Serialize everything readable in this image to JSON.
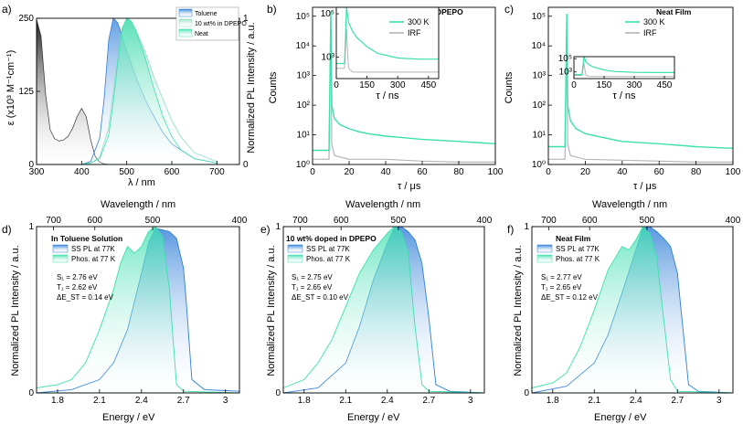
{
  "chart_data": [
    {
      "panel": "a)",
      "type": "area",
      "xlabel": "λ / nm",
      "ylabel_left": "ε (x10³ M⁻¹cm⁻¹)",
      "ylabel_right": "Normalized PL Intensity / a.u.",
      "xlim": [
        300,
        750
      ],
      "ylim_left": [
        0,
        250
      ],
      "ylim_right": [
        0,
        1
      ],
      "xticks": [
        "300",
        "400",
        "500",
        "600",
        "700"
      ],
      "yticks_left": [
        "0",
        "125",
        "250"
      ],
      "yticks_right": [
        "0",
        "1"
      ],
      "absorption": {
        "x": [
          300,
          310,
          320,
          330,
          340,
          350,
          360,
          370,
          380,
          390,
          400,
          410,
          420,
          430,
          440,
          450,
          460
        ],
        "y": [
          248,
          220,
          120,
          60,
          44,
          40,
          42,
          48,
          62,
          82,
          96,
          82,
          42,
          14,
          4,
          1,
          0
        ]
      },
      "legend": [
        "Toluene",
        "10 wt% in DPEPO",
        "Neat"
      ],
      "series": [
        {
          "name": "Toluene",
          "color": "#2f7fd8",
          "x": [
            400,
            420,
            440,
            450,
            460,
            470,
            480,
            490,
            500,
            520,
            540,
            560,
            580,
            600,
            650,
            700
          ],
          "y": [
            0,
            0.02,
            0.18,
            0.45,
            0.85,
            1.0,
            0.97,
            0.88,
            0.78,
            0.6,
            0.45,
            0.33,
            0.22,
            0.14,
            0.04,
            0.01
          ]
        },
        {
          "name": "10 wt% in DPEPO",
          "color": "#8fdcc6",
          "x": [
            400,
            420,
            440,
            460,
            480,
            490,
            500,
            510,
            520,
            540,
            560,
            580,
            600,
            620,
            650,
            700
          ],
          "y": [
            0,
            0.01,
            0.05,
            0.25,
            0.72,
            0.92,
            1.0,
            0.98,
            0.92,
            0.78,
            0.6,
            0.45,
            0.3,
            0.19,
            0.08,
            0.02
          ]
        },
        {
          "name": "Neat",
          "color": "#3ddfae",
          "x": [
            400,
            420,
            440,
            460,
            470,
            480,
            490,
            500,
            510,
            520,
            540,
            560,
            580,
            600,
            620,
            650,
            700
          ],
          "y": [
            0,
            0.01,
            0.04,
            0.2,
            0.42,
            0.7,
            0.93,
            1.0,
            0.98,
            0.92,
            0.74,
            0.52,
            0.33,
            0.19,
            0.1,
            0.04,
            0.01
          ]
        }
      ]
    },
    {
      "panel": "b)",
      "type": "line",
      "title": "10 wt% doped in DPEPO",
      "xlabel": "τ / μs",
      "ylabel": "Counts",
      "xlim": [
        0,
        100
      ],
      "ylim": [
        1,
        200000
      ],
      "yscale": "log",
      "xticks": [
        "0",
        "20",
        "40",
        "60",
        "80",
        "100"
      ],
      "yticks": [
        "10⁰",
        "10¹",
        "10²",
        "10³",
        "10⁴",
        "10⁵"
      ],
      "legend": [
        "300 K",
        "IRF"
      ],
      "series": [
        {
          "name": "300 K",
          "color": "#3ddfae",
          "x": [
            0,
            9,
            10,
            10.5,
            12,
            15,
            20,
            25,
            30,
            40,
            50,
            60,
            70,
            80,
            90,
            100
          ],
          "y": [
            3,
            3,
            150000,
            100,
            35,
            22,
            16,
            13,
            11,
            9,
            8,
            7,
            6.5,
            6,
            5.5,
            5
          ]
        },
        {
          "name": "IRF",
          "color": "#b5b5b5",
          "x": [
            0,
            9,
            10,
            10.5,
            12,
            20,
            40,
            60,
            80,
            100
          ],
          "y": [
            1.5,
            1.5,
            60000,
            5,
            2,
            1.5,
            1.5,
            1.3,
            1.2,
            1.2
          ]
        }
      ],
      "inset": {
        "xlabel": "τ / ns",
        "xlim": [
          0,
          500
        ],
        "ylim": [
          100,
          200000
        ],
        "yscale": "log",
        "xticks": [
          "0",
          "150",
          "300",
          "450"
        ],
        "yticks": [
          "10³",
          "10⁵"
        ],
        "series": [
          {
            "name": "300 K",
            "x": [
              0,
              40,
              50,
              60,
              80,
              100,
              150,
              200,
              300,
              400,
              500
            ],
            "y": [
              500,
              500,
              200000,
              40000,
              15000,
              8000,
              3000,
              1500,
              900,
              800,
              800
            ]
          },
          {
            "name": "IRF",
            "x": [
              0,
              40,
              50,
              55,
              60,
              80,
              500
            ],
            "y": [
              300,
              300,
              20000,
              2000,
              300,
              200,
              200
            ]
          }
        ]
      }
    },
    {
      "panel": "c)",
      "type": "line",
      "title": "Neat Film",
      "xlabel": "τ / μs",
      "ylabel": "Counts",
      "xlim": [
        0,
        100
      ],
      "ylim": [
        1,
        200000
      ],
      "yscale": "log",
      "xticks": [
        "0",
        "20",
        "40",
        "60",
        "80",
        "100"
      ],
      "yticks": [
        "10⁰",
        "10¹",
        "10²",
        "10³",
        "10⁴",
        "10⁵"
      ],
      "legend": [
        "300 K",
        "IRF"
      ],
      "series": [
        {
          "name": "300 K",
          "color": "#3ddfae",
          "x": [
            0,
            9,
            10,
            10.5,
            12,
            15,
            20,
            30,
            40,
            60,
            80,
            100
          ],
          "y": [
            4,
            4,
            120000,
            100,
            30,
            16,
            11,
            8,
            6,
            5,
            4,
            3.5
          ]
        },
        {
          "name": "IRF",
          "color": "#b5b5b5",
          "x": [
            0,
            9,
            10,
            10.5,
            12,
            20,
            40,
            60,
            80,
            100
          ],
          "y": [
            1.5,
            1.5,
            50000,
            5,
            2,
            1.5,
            1.4,
            1.3,
            1.2,
            1.2
          ]
        }
      ],
      "inset": {
        "xlabel": "τ / ns",
        "xlim": [
          0,
          500
        ],
        "ylim": [
          100,
          200000
        ],
        "yscale": "log",
        "xticks": [
          "0",
          "150",
          "300",
          "450"
        ],
        "yticks": [
          "10³",
          "10⁵"
        ],
        "series": [
          {
            "name": "300 K",
            "x": [
              0,
              40,
              50,
              60,
              80,
              100,
              150,
              200,
              300,
              400,
              500
            ],
            "y": [
              400,
              400,
              200000,
              30000,
              10000,
              5000,
              2000,
              1200,
              900,
              800,
              800
            ]
          },
          {
            "name": "IRF",
            "x": [
              0,
              40,
              50,
              55,
              60,
              80,
              500
            ],
            "y": [
              300,
              300,
              20000,
              2000,
              300,
              200,
              200
            ]
          }
        ]
      }
    },
    {
      "panel": "d)",
      "type": "area",
      "title": "In Toluene Solution",
      "xlabel": "Energy / eV",
      "ylabel": "Normalized PL Intensity / a.u.",
      "top_xlabel": "Wavelength / nm",
      "xlim": [
        1.65,
        3.1
      ],
      "ylim": [
        0,
        1
      ],
      "xticks": [
        "1.8",
        "2.1",
        "2.4",
        "2.7",
        "3"
      ],
      "top_xticks": [
        "700",
        "600",
        "500",
        "400"
      ],
      "yticks": [
        "0",
        "1"
      ],
      "legend": [
        "SS PL at 77K",
        "Phos. at 77 K"
      ],
      "annotations": [
        "S₁ = 2.76 eV",
        "T₁ = 2.62 eV",
        "ΔE_ST = 0.14 eV"
      ],
      "series": [
        {
          "name": "SS PL at 77K",
          "color": "#2f7fd8",
          "x": [
            1.65,
            1.9,
            2.1,
            2.2,
            2.3,
            2.4,
            2.45,
            2.5,
            2.55,
            2.6,
            2.65,
            2.7,
            2.72,
            2.76,
            2.85,
            3.1
          ],
          "y": [
            0,
            0.02,
            0.08,
            0.18,
            0.38,
            0.72,
            0.9,
            0.99,
            0.98,
            0.97,
            0.93,
            0.75,
            0.55,
            0.08,
            0.02,
            0.01
          ]
        },
        {
          "name": "Phos. at 77 K",
          "color": "#3ddfae",
          "x": [
            1.65,
            1.8,
            1.9,
            2.0,
            2.1,
            2.2,
            2.25,
            2.3,
            2.35,
            2.4,
            2.45,
            2.5,
            2.55,
            2.6,
            2.65,
            2.7,
            3.1
          ],
          "y": [
            0.03,
            0.05,
            0.08,
            0.18,
            0.38,
            0.62,
            0.78,
            0.88,
            0.84,
            0.88,
            0.97,
            1.0,
            0.94,
            0.62,
            0.05,
            0.01,
            0
          ]
        }
      ]
    },
    {
      "panel": "e)",
      "type": "area",
      "title": "10 wt% doped in DPEPO",
      "xlabel": "Energy / eV",
      "ylabel": "Normalized PL Intensity / a.u.",
      "top_xlabel": "Wavelength / nm",
      "xlim": [
        1.65,
        3.1
      ],
      "ylim": [
        0,
        1
      ],
      "xticks": [
        "1.8",
        "2.1",
        "2.4",
        "2.7",
        "3"
      ],
      "top_xticks": [
        "700",
        "600",
        "500",
        "400"
      ],
      "yticks": [
        "0",
        "1"
      ],
      "legend": [
        "SS PL at 77K",
        "Phos. at 77 K"
      ],
      "annotations": [
        "S₁ = 2.75 eV",
        "T₁ = 2.65 eV",
        "ΔE_ST = 0.10 eV"
      ],
      "series": [
        {
          "name": "SS PL at 77K",
          "color": "#2f7fd8",
          "x": [
            1.65,
            1.9,
            2.1,
            2.2,
            2.3,
            2.4,
            2.45,
            2.5,
            2.55,
            2.6,
            2.65,
            2.7,
            2.75,
            2.85,
            3.1
          ],
          "y": [
            0,
            0.03,
            0.18,
            0.4,
            0.68,
            0.9,
            0.99,
            1.0,
            0.97,
            0.92,
            0.78,
            0.45,
            0.05,
            0.01,
            0
          ]
        },
        {
          "name": "Phos. at 77 K",
          "color": "#3ddfae",
          "x": [
            1.65,
            1.8,
            1.9,
            2.0,
            2.1,
            2.2,
            2.3,
            2.4,
            2.45,
            2.5,
            2.55,
            2.6,
            2.65,
            2.7,
            3.1
          ],
          "y": [
            0.03,
            0.08,
            0.18,
            0.32,
            0.52,
            0.72,
            0.86,
            0.96,
            1.0,
            0.97,
            0.85,
            0.4,
            0.05,
            0.01,
            0
          ]
        }
      ]
    },
    {
      "panel": "f)",
      "type": "area",
      "title": "Neat Film",
      "xlabel": "Energy / eV",
      "ylabel": "Normalized PL Intensity / a.u.",
      "top_xlabel": "Wavelength / nm",
      "xlim": [
        1.65,
        3.1
      ],
      "ylim": [
        0,
        1
      ],
      "xticks": [
        "1.8",
        "2.1",
        "2.4",
        "2.7",
        "3"
      ],
      "top_xticks": [
        "700",
        "600",
        "500",
        "400"
      ],
      "yticks": [
        "0",
        "1"
      ],
      "legend": [
        "SS PL at 77K",
        "Phos. at 77 K"
      ],
      "annotations": [
        "S₁ = 2.77 eV",
        "T₁ = 2.65 eV",
        "ΔE_ST = 0.12 eV"
      ],
      "series": [
        {
          "name": "SS PL at 77K",
          "color": "#2f7fd8",
          "x": [
            1.65,
            1.9,
            2.1,
            2.2,
            2.3,
            2.4,
            2.45,
            2.5,
            2.55,
            2.6,
            2.65,
            2.7,
            2.72,
            2.78,
            2.85,
            3.1
          ],
          "y": [
            0,
            0.04,
            0.18,
            0.35,
            0.6,
            0.86,
            0.99,
            1.0,
            0.97,
            0.93,
            0.88,
            0.72,
            0.55,
            0.05,
            0.01,
            0
          ]
        },
        {
          "name": "Phos. at 77 K",
          "color": "#3ddfae",
          "x": [
            1.65,
            1.8,
            1.9,
            2.0,
            2.1,
            2.2,
            2.3,
            2.35,
            2.4,
            2.45,
            2.5,
            2.55,
            2.6,
            2.65,
            2.7,
            3.1
          ],
          "y": [
            0.03,
            0.06,
            0.12,
            0.28,
            0.5,
            0.74,
            0.88,
            0.86,
            0.92,
            1.0,
            0.96,
            0.82,
            0.45,
            0.08,
            0.01,
            0
          ]
        }
      ]
    }
  ]
}
